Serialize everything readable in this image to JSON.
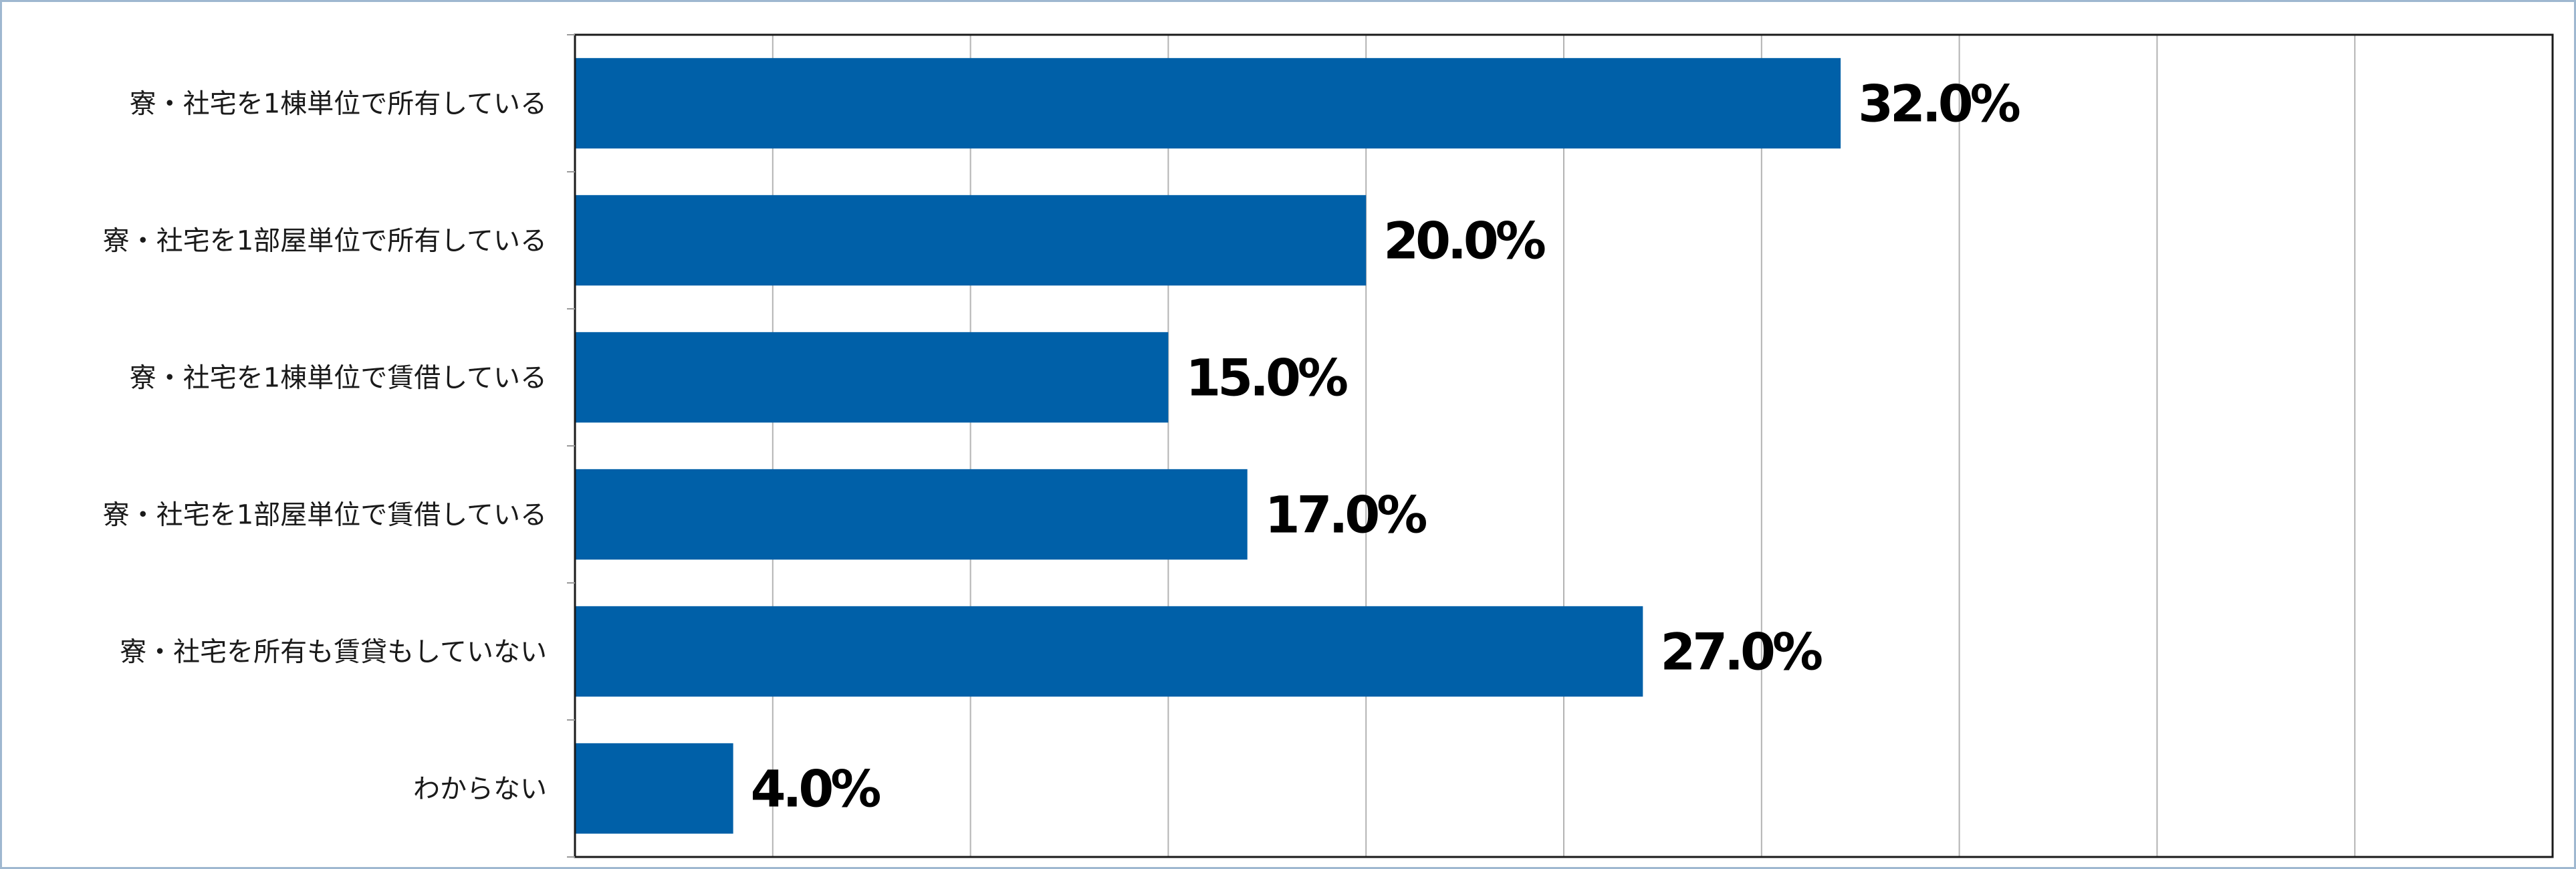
{
  "chart_data": {
    "type": "bar",
    "orientation": "horizontal",
    "categories": [
      "寮・社宅を1棟単位で所有している",
      "寮・社宅を1部屋単位で所有している",
      "寮・社宅を1棟単位で賃借している",
      "寮・社宅を1部屋単位で賃借している",
      "寮・社宅を所有も賃貸もしていない",
      "わからない"
    ],
    "values": [
      32.0,
      20.0,
      15.0,
      17.0,
      27.0,
      4.0
    ],
    "value_labels": [
      "32.0%",
      "20.0%",
      "15.0%",
      "17.0%",
      "27.0%",
      "4.0%"
    ],
    "xlim": [
      0,
      50
    ],
    "grid": true,
    "legend": "none",
    "title": "",
    "xlabel": "",
    "ylabel": "",
    "colors": {
      "bar": "#0060a8",
      "frame": "#9fb8d0",
      "grid": "#b3b3b3"
    }
  }
}
